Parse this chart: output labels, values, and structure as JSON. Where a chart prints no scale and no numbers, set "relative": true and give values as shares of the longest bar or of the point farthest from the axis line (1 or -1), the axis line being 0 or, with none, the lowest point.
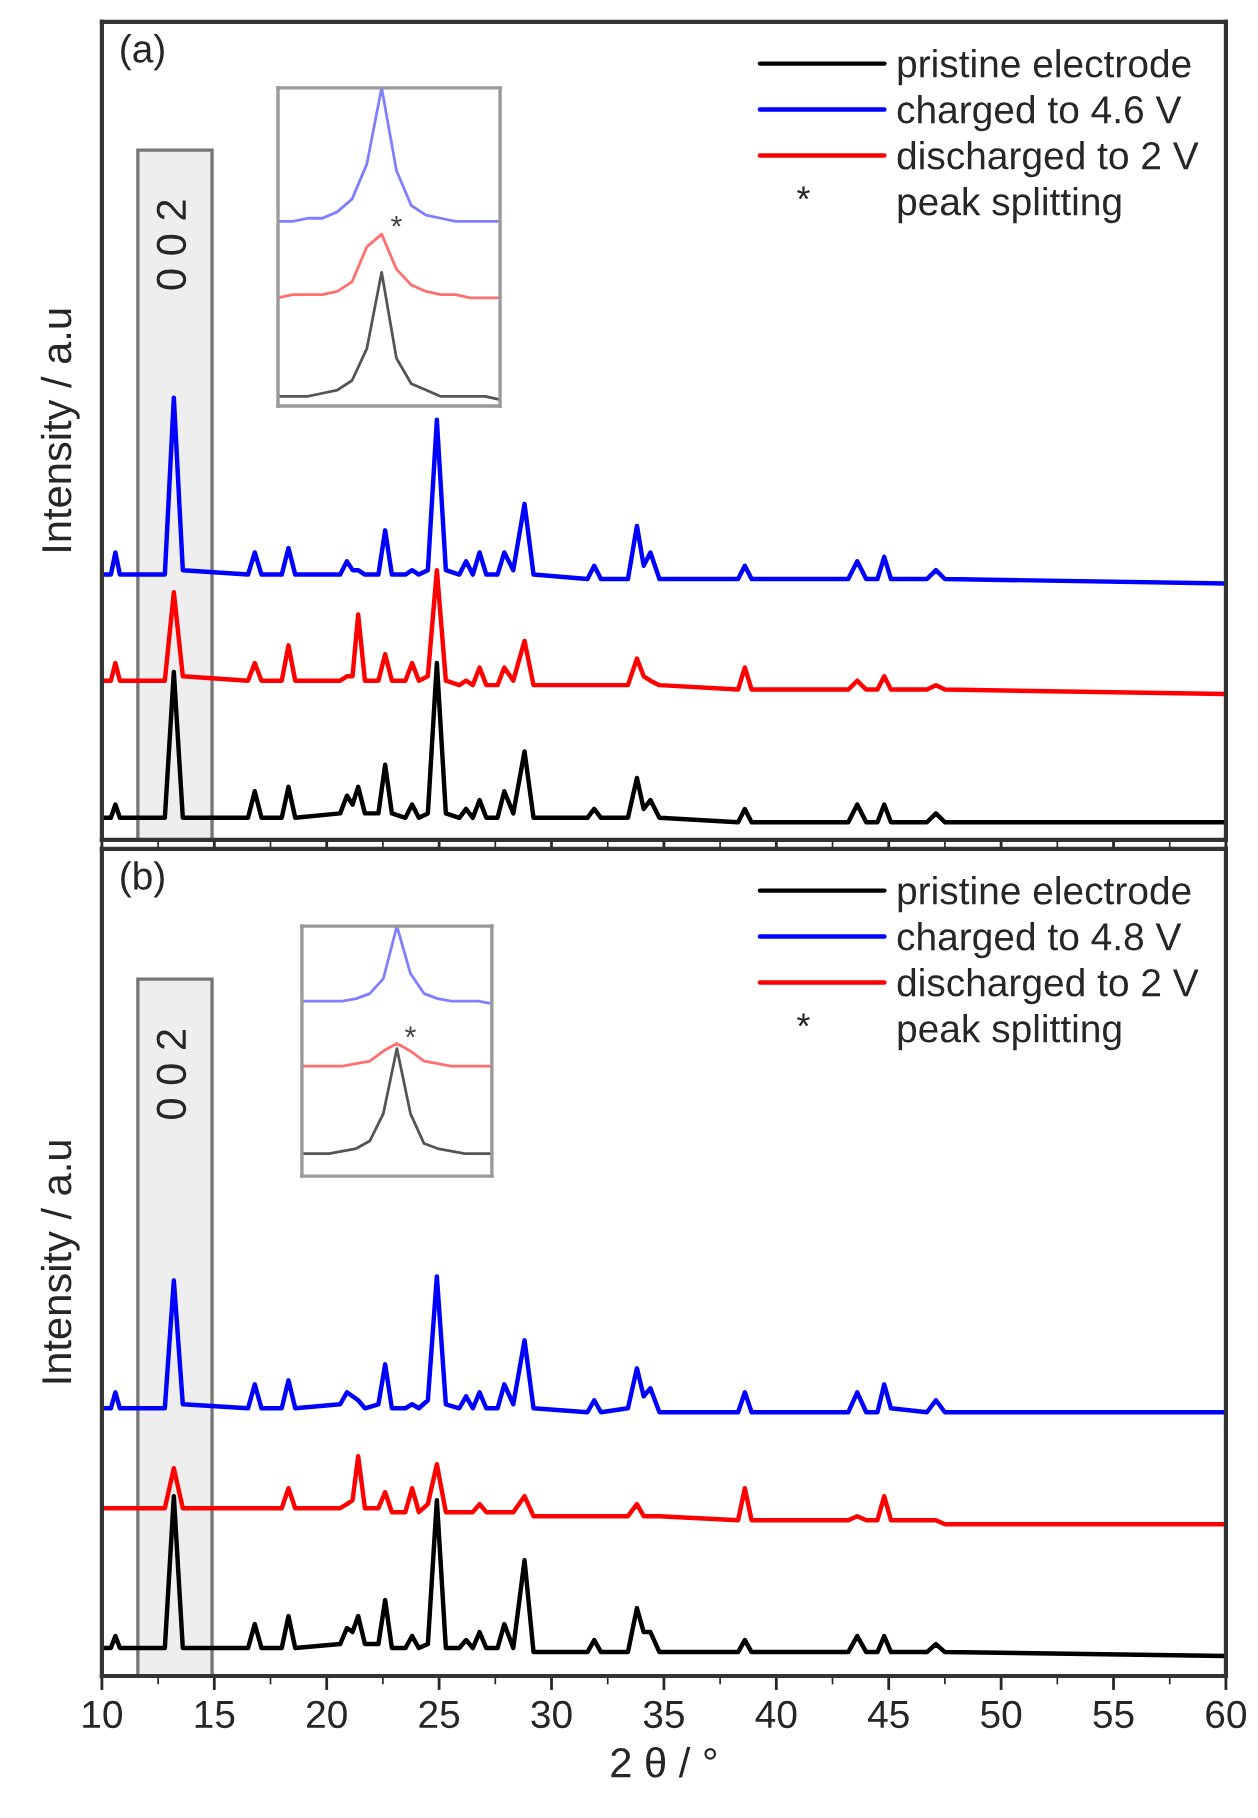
{
  "chart_data": [
    {
      "type": "line",
      "relative": true,
      "xlim": [
        10,
        60
      ],
      "xticks": [
        10,
        15,
        20,
        25,
        30,
        35,
        40,
        45,
        50,
        55,
        60
      ],
      "tick_labels": false,
      "ylabel": "Intensity / a.u",
      "legend": "top right",
      "annotations": [
        "(a)",
        "*",
        "peak splitting"
      ],
      "bands": [
        {
          "axis": "x",
          "from": 11.6,
          "to": 14.9,
          "label": "0 0 2",
          "color": "#777777"
        }
      ],
      "x": [
        10,
        10.4,
        10.6,
        10.8,
        12.8,
        13.2,
        13.6,
        16.5,
        16.8,
        17.1,
        18.0,
        18.3,
        18.6,
        20.6,
        20.9,
        21.15,
        21.4,
        21.7,
        22.3,
        22.6,
        22.9,
        23.5,
        23.8,
        24.1,
        24.5,
        24.9,
        25.3,
        25.9,
        26.2,
        26.5,
        26.8,
        27.1,
        27.6,
        27.9,
        28.3,
        28.8,
        29.2,
        31.6,
        31.9,
        32.2,
        33.4,
        33.8,
        34.1,
        34.4,
        34.8,
        38.3,
        38.6,
        38.9,
        43.2,
        43.6,
        44.0,
        44.5,
        44.8,
        45.1,
        46.7,
        47.1,
        47.5,
        60
      ],
      "series": [
        {
          "name": "pristine electrode",
          "color": "#000000",
          "values": [
            0.05,
            0.05,
            0.08,
            0.05,
            0.05,
            0.38,
            0.05,
            0.05,
            0.11,
            0.05,
            0.05,
            0.12,
            0.05,
            0.06,
            0.1,
            0.08,
            0.12,
            0.06,
            0.06,
            0.17,
            0.06,
            0.05,
            0.08,
            0.05,
            0.06,
            0.4,
            0.06,
            0.05,
            0.07,
            0.05,
            0.09,
            0.05,
            0.05,
            0.11,
            0.06,
            0.2,
            0.05,
            0.05,
            0.07,
            0.05,
            0.05,
            0.14,
            0.07,
            0.09,
            0.05,
            0.04,
            0.07,
            0.04,
            0.04,
            0.08,
            0.04,
            0.04,
            0.08,
            0.04,
            0.04,
            0.06,
            0.04,
            0.04
          ]
        },
        {
          "name": "charged to 4.6 V",
          "color": "#0000ff",
          "values": [
            0.6,
            0.6,
            0.65,
            0.6,
            0.6,
            1.0,
            0.61,
            0.6,
            0.65,
            0.6,
            0.6,
            0.66,
            0.6,
            0.6,
            0.63,
            0.61,
            0.61,
            0.6,
            0.6,
            0.7,
            0.6,
            0.6,
            0.61,
            0.6,
            0.61,
            0.95,
            0.61,
            0.6,
            0.63,
            0.6,
            0.65,
            0.6,
            0.6,
            0.65,
            0.61,
            0.76,
            0.6,
            0.59,
            0.62,
            0.59,
            0.59,
            0.71,
            0.62,
            0.65,
            0.59,
            0.59,
            0.62,
            0.59,
            0.59,
            0.63,
            0.59,
            0.59,
            0.64,
            0.59,
            0.59,
            0.61,
            0.59,
            0.58
          ]
        },
        {
          "name": "discharged to 2 V",
          "color": "#ff0000",
          "values": [
            0.36,
            0.36,
            0.4,
            0.36,
            0.36,
            0.56,
            0.37,
            0.36,
            0.4,
            0.36,
            0.36,
            0.44,
            0.36,
            0.36,
            0.37,
            0.37,
            0.51,
            0.36,
            0.36,
            0.42,
            0.36,
            0.36,
            0.4,
            0.36,
            0.37,
            0.61,
            0.36,
            0.35,
            0.36,
            0.35,
            0.39,
            0.35,
            0.35,
            0.39,
            0.36,
            0.45,
            0.35,
            0.35,
            0.35,
            0.35,
            0.35,
            0.41,
            0.37,
            0.36,
            0.35,
            0.34,
            0.39,
            0.34,
            0.34,
            0.36,
            0.34,
            0.34,
            0.37,
            0.34,
            0.34,
            0.35,
            0.34,
            0.33
          ]
        }
      ]
    },
    {
      "type": "line",
      "relative": true,
      "tick_labels": false,
      "annotations": [
        "*"
      ],
      "categories": [
        null,
        null,
        null,
        null,
        null,
        null,
        null,
        null,
        null,
        null,
        null,
        null,
        null,
        null,
        null,
        null
      ],
      "series": [
        {
          "color": "#7f7fff",
          "values": [
            0.58,
            0.58,
            0.59,
            0.59,
            0.61,
            0.65,
            0.76,
            1.0,
            0.74,
            0.63,
            0.6,
            0.59,
            0.58,
            0.58,
            0.58,
            0.58
          ]
        },
        {
          "color": "#ff6f6f",
          "values": [
            0.34,
            0.35,
            0.35,
            0.35,
            0.36,
            0.39,
            0.5,
            0.54,
            0.43,
            0.38,
            0.36,
            0.35,
            0.35,
            0.34,
            0.34,
            0.34
          ]
        },
        {
          "color": "#555555",
          "values": [
            0.03,
            0.03,
            0.03,
            0.04,
            0.05,
            0.08,
            0.18,
            0.42,
            0.15,
            0.07,
            0.05,
            0.03,
            0.03,
            0.03,
            0.03,
            0.02
          ]
        }
      ]
    },
    {
      "type": "line",
      "relative": true,
      "xlim": [
        10,
        60
      ],
      "xticks": [
        10,
        15,
        20,
        25,
        30,
        35,
        40,
        45,
        50,
        55,
        60
      ],
      "tick_labels": "x",
      "xlabel": "2 θ / °",
      "ylabel": "Intensity / a.u",
      "legend": "top right",
      "annotations": [
        "(b)",
        "*",
        "peak splitting"
      ],
      "bands": [
        {
          "axis": "x",
          "from": 11.6,
          "to": 14.9,
          "label": "0 0 2",
          "color": "#777777"
        }
      ],
      "x": [
        10,
        10.4,
        10.6,
        10.8,
        12.8,
        13.2,
        13.6,
        16.5,
        16.8,
        17.1,
        18.0,
        18.3,
        18.6,
        20.6,
        20.9,
        21.15,
        21.4,
        21.7,
        22.3,
        22.6,
        22.9,
        23.5,
        23.8,
        24.1,
        24.5,
        24.9,
        25.3,
        25.9,
        26.2,
        26.5,
        26.8,
        27.1,
        27.6,
        27.9,
        28.3,
        28.8,
        29.2,
        31.6,
        31.9,
        32.2,
        33.4,
        33.8,
        34.1,
        34.4,
        34.8,
        38.3,
        38.6,
        38.9,
        43.2,
        43.6,
        44.0,
        44.5,
        44.8,
        45.1,
        46.7,
        47.1,
        47.5,
        60
      ],
      "series": [
        {
          "name": "pristine electrode",
          "color": "#000000",
          "values": [
            0.07,
            0.07,
            0.1,
            0.07,
            0.07,
            0.45,
            0.07,
            0.07,
            0.13,
            0.07,
            0.07,
            0.15,
            0.07,
            0.08,
            0.12,
            0.11,
            0.15,
            0.08,
            0.08,
            0.19,
            0.07,
            0.07,
            0.1,
            0.07,
            0.08,
            0.44,
            0.07,
            0.07,
            0.09,
            0.07,
            0.11,
            0.07,
            0.07,
            0.13,
            0.07,
            0.29,
            0.06,
            0.06,
            0.09,
            0.06,
            0.06,
            0.17,
            0.11,
            0.11,
            0.06,
            0.06,
            0.09,
            0.06,
            0.06,
            0.1,
            0.06,
            0.06,
            0.1,
            0.06,
            0.06,
            0.08,
            0.06,
            0.05
          ]
        },
        {
          "name": "charged to 4.8 V",
          "color": "#0000ff",
          "values": [
            0.67,
            0.67,
            0.71,
            0.67,
            0.67,
            0.99,
            0.68,
            0.67,
            0.73,
            0.67,
            0.67,
            0.74,
            0.67,
            0.68,
            0.71,
            0.7,
            0.69,
            0.67,
            0.68,
            0.78,
            0.67,
            0.67,
            0.68,
            0.67,
            0.69,
            1.0,
            0.68,
            0.67,
            0.7,
            0.67,
            0.71,
            0.67,
            0.67,
            0.73,
            0.68,
            0.84,
            0.67,
            0.66,
            0.69,
            0.66,
            0.67,
            0.77,
            0.7,
            0.72,
            0.66,
            0.66,
            0.71,
            0.66,
            0.66,
            0.71,
            0.66,
            0.66,
            0.73,
            0.67,
            0.66,
            0.69,
            0.66,
            0.66
          ]
        },
        {
          "name": "discharged to 2 V",
          "color": "#ff0000",
          "values": [
            0.42,
            0.42,
            0.42,
            0.42,
            0.42,
            0.52,
            0.42,
            0.42,
            0.42,
            0.42,
            0.42,
            0.47,
            0.42,
            0.42,
            0.43,
            0.44,
            0.55,
            0.42,
            0.42,
            0.46,
            0.41,
            0.41,
            0.47,
            0.41,
            0.43,
            0.53,
            0.41,
            0.41,
            0.41,
            0.41,
            0.43,
            0.41,
            0.41,
            0.41,
            0.41,
            0.45,
            0.4,
            0.4,
            0.4,
            0.4,
            0.4,
            0.43,
            0.4,
            0.4,
            0.4,
            0.39,
            0.47,
            0.39,
            0.39,
            0.4,
            0.39,
            0.39,
            0.45,
            0.39,
            0.39,
            0.39,
            0.38,
            0.38
          ]
        }
      ]
    },
    {
      "type": "line",
      "relative": true,
      "tick_labels": false,
      "annotations": [
        "*"
      ],
      "categories": [
        null,
        null,
        null,
        null,
        null,
        null,
        null,
        null,
        null,
        null,
        null,
        null,
        null,
        null,
        null
      ],
      "series": [
        {
          "color": "#7f7fff",
          "values": [
            0.7,
            0.7,
            0.7,
            0.7,
            0.71,
            0.73,
            0.79,
            1.0,
            0.81,
            0.73,
            0.71,
            0.7,
            0.7,
            0.7,
            0.69
          ]
        },
        {
          "color": "#ff6f6f",
          "values": [
            0.44,
            0.44,
            0.44,
            0.44,
            0.45,
            0.46,
            0.5,
            0.53,
            0.5,
            0.46,
            0.45,
            0.44,
            0.44,
            0.44,
            0.44
          ]
        },
        {
          "color": "#555555",
          "values": [
            0.09,
            0.09,
            0.09,
            0.1,
            0.11,
            0.14,
            0.25,
            0.51,
            0.25,
            0.13,
            0.11,
            0.1,
            0.09,
            0.09,
            0.09
          ]
        }
      ]
    }
  ]
}
